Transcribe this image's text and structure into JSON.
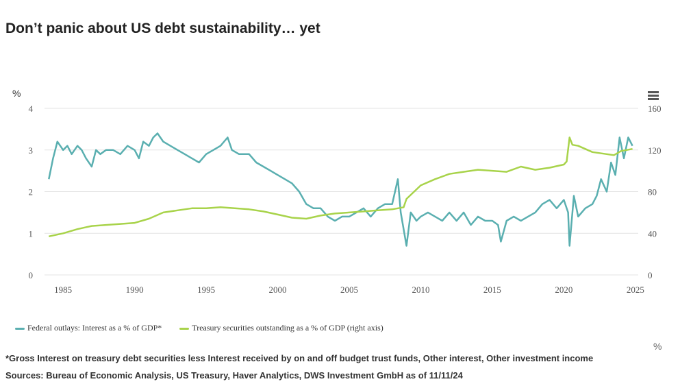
{
  "title": "Don’t panic about US debt sustainability… yet",
  "menu_icon": "hamburger-menu-icon",
  "footnote": "*Gross Interest on treasury debt securities less Interest received by on and off budget trust funds, Other interest, Other investment income",
  "sources": "Sources: Bureau of Economic Analysis, US Treasury, Haver Analytics, DWS Investment GmbH as of 11/11/24",
  "right_unit_below": "%",
  "chart_data": {
    "type": "line",
    "title": "Don’t panic about US debt sustainability… yet",
    "ylabel": "%",
    "xlim": [
      1983.7,
      2025.2
    ],
    "ylim": [
      0,
      4
    ],
    "y2lim": [
      0,
      160
    ],
    "grid": true,
    "legend_placement": "bottom-left",
    "x_ticks": [
      "1985",
      "1990",
      "1995",
      "2000",
      "2005",
      "2010",
      "2015",
      "2020",
      "2025"
    ],
    "y_ticks": [
      "0",
      "1",
      "2",
      "3",
      "4"
    ],
    "y2_ticks": [
      "0",
      "40",
      "80",
      "120",
      "160"
    ],
    "series": [
      {
        "name": "Federal outlays: Interest as a % of GDP*",
        "axis": "left",
        "color": "#5aafb0",
        "x": [
          1984,
          1984.3,
          1984.6,
          1985,
          1985.3,
          1985.6,
          1986,
          1986.3,
          1986.6,
          1987,
          1987.3,
          1987.6,
          1988,
          1988.5,
          1989,
          1989.5,
          1990,
          1990.3,
          1990.6,
          1991,
          1991.3,
          1991.6,
          1992,
          1992.5,
          1993,
          1993.5,
          1994,
          1994.5,
          1995,
          1995.5,
          1996,
          1996.5,
          1996.8,
          1997.3,
          1998,
          1998.5,
          1999,
          1999.5,
          2000,
          2000.5,
          2001,
          2001.5,
          2002,
          2002.5,
          2003,
          2003.5,
          2004,
          2004.5,
          2005,
          2005.5,
          2006,
          2006.5,
          2007,
          2007.5,
          2008,
          2008.4,
          2008.6,
          2009,
          2009.3,
          2009.7,
          2010,
          2010.5,
          2011,
          2011.5,
          2012,
          2012.5,
          2013,
          2013.5,
          2014,
          2014.5,
          2015,
          2015.4,
          2015.6,
          2016,
          2016.5,
          2017,
          2017.5,
          2018,
          2018.5,
          2019,
          2019.5,
          2020,
          2020.3,
          2020.4,
          2020.7,
          2021,
          2021.5,
          2022,
          2022.3,
          2022.6,
          2023,
          2023.3,
          2023.6,
          2023.9,
          2024.2,
          2024.5,
          2024.8
        ],
        "y": [
          2.3,
          2.8,
          3.2,
          3.0,
          3.1,
          2.9,
          3.1,
          3.0,
          2.8,
          2.6,
          3.0,
          2.9,
          3.0,
          3.0,
          2.9,
          3.1,
          3.0,
          2.8,
          3.2,
          3.1,
          3.3,
          3.4,
          3.2,
          3.1,
          3.0,
          2.9,
          2.8,
          2.7,
          2.9,
          3.0,
          3.1,
          3.3,
          3.0,
          2.9,
          2.9,
          2.7,
          2.6,
          2.5,
          2.4,
          2.3,
          2.2,
          2.0,
          1.7,
          1.6,
          1.6,
          1.4,
          1.3,
          1.4,
          1.4,
          1.5,
          1.6,
          1.4,
          1.6,
          1.7,
          1.7,
          2.3,
          1.5,
          0.7,
          1.5,
          1.3,
          1.4,
          1.5,
          1.4,
          1.3,
          1.5,
          1.3,
          1.5,
          1.2,
          1.4,
          1.3,
          1.3,
          1.2,
          0.8,
          1.3,
          1.4,
          1.3,
          1.4,
          1.5,
          1.7,
          1.8,
          1.6,
          1.8,
          1.5,
          0.7,
          1.9,
          1.4,
          1.6,
          1.7,
          1.9,
          2.3,
          2.0,
          2.7,
          2.4,
          3.3,
          2.8,
          3.3,
          3.1
        ]
      },
      {
        "name": "Treasury securities outstanding as a % of GDP (right axis)",
        "axis": "right",
        "color": "#a8d34a",
        "x": [
          1984,
          1985,
          1986,
          1987,
          1988,
          1989,
          1990,
          1991,
          1992,
          1993,
          1994,
          1995,
          1996,
          1997,
          1998,
          1999,
          2000,
          2001,
          2002,
          2003,
          2004,
          2005,
          2006,
          2007,
          2008,
          2008.8,
          2009,
          2010,
          2011,
          2012,
          2013,
          2014,
          2015,
          2016,
          2017,
          2018,
          2019,
          2020,
          2020.2,
          2020.4,
          2020.6,
          2021,
          2022,
          2023,
          2023.5,
          2024,
          2024.8
        ],
        "y": [
          37,
          40,
          44,
          47,
          48,
          49,
          50,
          54,
          60,
          62,
          64,
          64,
          65,
          64,
          63,
          61,
          58,
          55,
          54,
          57,
          59,
          60,
          61,
          62,
          63,
          65,
          73,
          86,
          92,
          97,
          99,
          101,
          100,
          99,
          104,
          101,
          103,
          106,
          109,
          132,
          125,
          124,
          118,
          116,
          115,
          119,
          121
        ]
      }
    ]
  }
}
